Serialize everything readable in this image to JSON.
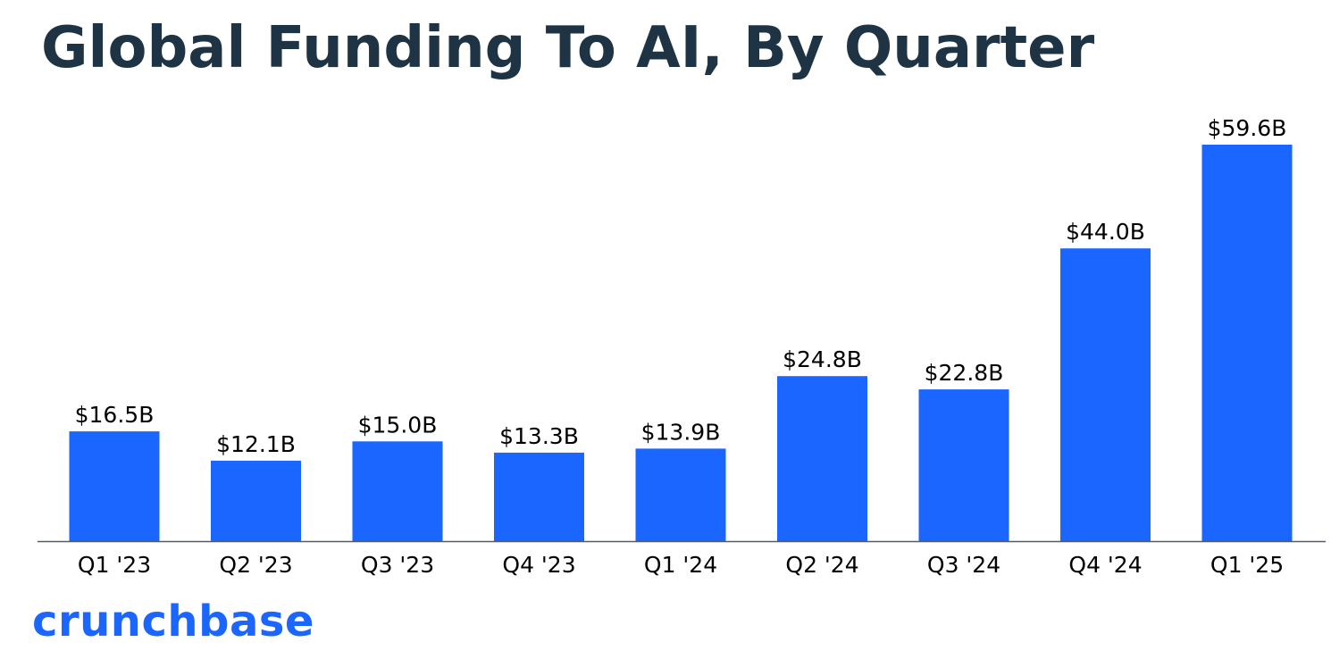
{
  "title": "Global Funding To AI, By Quarter",
  "brand": "crunchbase",
  "colors": {
    "bar": "#1a66ff",
    "title": "#1e3344",
    "text": "#000000",
    "axis": "#555b61",
    "brand": "#1a66ff"
  },
  "chart_data": {
    "type": "bar",
    "title": "Global Funding To AI, By Quarter",
    "xlabel": "",
    "ylabel": "",
    "categories": [
      "Q1 '23",
      "Q2 '23",
      "Q3 '23",
      "Q4 '23",
      "Q1 '24",
      "Q2 '24",
      "Q3 '24",
      "Q4 '24",
      "Q1 '25"
    ],
    "values": [
      16.5,
      12.1,
      15.0,
      13.3,
      13.9,
      24.8,
      22.8,
      44.0,
      59.6
    ],
    "value_labels": [
      "$16.5B",
      "$12.1B",
      "$15.0B",
      "$13.3B",
      "$13.9B",
      "$24.8B",
      "$22.8B",
      "$44.0B",
      "$59.6B"
    ],
    "unit": "B",
    "ylim": [
      0,
      59.6
    ],
    "grid": false,
    "legend": "none"
  }
}
